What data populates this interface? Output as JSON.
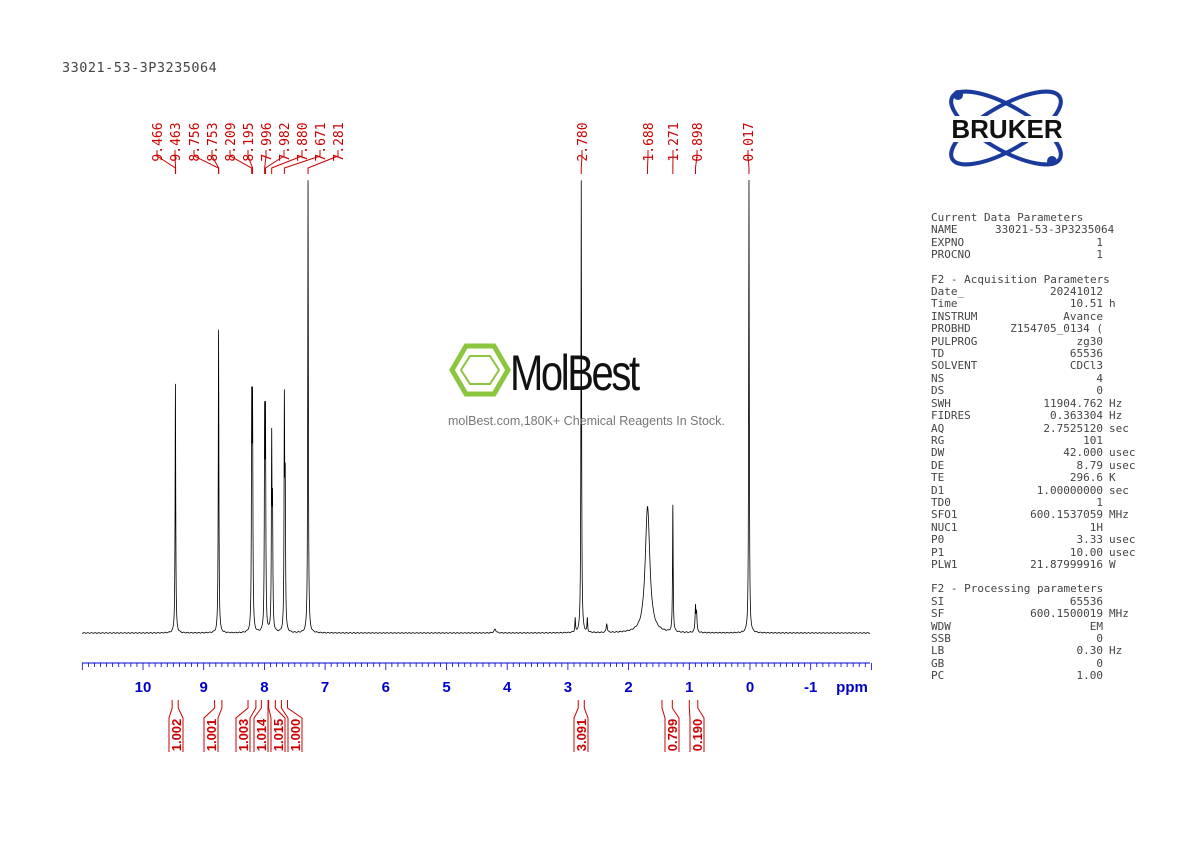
{
  "sample_name": "33021-53-3P3235064",
  "logo": {
    "text": "BRUKER"
  },
  "watermark": {
    "name": "MolBest",
    "tagline": "molBest.com,180K+ Chemical Reagents In Stock."
  },
  "parameters": [
    {
      "title": "Current Data Parameters",
      "rows": [
        [
          "NAME",
          "33021-53-3P3235064",
          ""
        ],
        [
          "EXPNO",
          "1",
          ""
        ],
        [
          "PROCNO",
          "1",
          ""
        ]
      ]
    },
    {
      "title": "F2 - Acquisition Parameters",
      "rows": [
        [
          "Date_",
          "20241012",
          ""
        ],
        [
          "Time",
          "10.51",
          "h"
        ],
        [
          "INSTRUM",
          "Avance",
          ""
        ],
        [
          "PROBHD",
          "Z154705_0134 (",
          ""
        ],
        [
          "PULPROG",
          "zg30",
          ""
        ],
        [
          "TD",
          "65536",
          ""
        ],
        [
          "SOLVENT",
          "CDCl3",
          ""
        ],
        [
          "NS",
          "4",
          ""
        ],
        [
          "DS",
          "0",
          ""
        ],
        [
          "SWH",
          "11904.762",
          "Hz"
        ],
        [
          "FIDRES",
          "0.363304",
          "Hz"
        ],
        [
          "AQ",
          "2.7525120",
          "sec"
        ],
        [
          "RG",
          "101",
          ""
        ],
        [
          "DW",
          "42.000",
          "usec"
        ],
        [
          "DE",
          "8.79",
          "usec"
        ],
        [
          "TE",
          "296.6",
          "K"
        ],
        [
          "D1",
          "1.00000000",
          "sec"
        ],
        [
          "TD0",
          "1",
          ""
        ],
        [
          "SFO1",
          "600.1537059",
          "MHz"
        ],
        [
          "NUC1",
          "1H",
          ""
        ],
        [
          "P0",
          "3.33",
          "usec"
        ],
        [
          "P1",
          "10.00",
          "usec"
        ],
        [
          "PLW1",
          "21.87999916",
          "W"
        ]
      ]
    },
    {
      "title": "F2 - Processing parameters",
      "rows": [
        [
          "SI",
          "65536",
          ""
        ],
        [
          "SF",
          "600.1500019",
          "MHz"
        ],
        [
          "WDW",
          "EM",
          ""
        ],
        [
          "SSB",
          "0",
          ""
        ],
        [
          "LB",
          "0.30",
          "Hz"
        ],
        [
          "GB",
          "0",
          ""
        ],
        [
          "PC",
          "1.00",
          ""
        ]
      ]
    }
  ],
  "chart_data": {
    "type": "line",
    "xlabel": "ppm",
    "xlim": [
      11,
      -2
    ],
    "x_reversed": true,
    "xticks": [
      10,
      9,
      8,
      7,
      6,
      5,
      4,
      3,
      2,
      1,
      0,
      -1
    ],
    "peak_labels": [
      "9.466",
      "9.463",
      "8.756",
      "8.753",
      "8.209",
      "8.195",
      "7.996",
      "7.982",
      "7.880",
      "7.671",
      "7.281",
      "2.780",
      "1.688",
      "1.271",
      "0.898",
      "0.017"
    ],
    "signals": [
      {
        "ppm": 9.466,
        "intensity": 0.55,
        "width": 0.006
      },
      {
        "ppm": 8.755,
        "intensity": 0.67,
        "width": 0.006
      },
      {
        "ppm": 8.209,
        "intensity": 0.47,
        "width": 0.006
      },
      {
        "ppm": 8.195,
        "intensity": 0.47,
        "width": 0.006
      },
      {
        "ppm": 7.996,
        "intensity": 0.44,
        "width": 0.006
      },
      {
        "ppm": 7.982,
        "intensity": 0.44,
        "width": 0.006
      },
      {
        "ppm": 7.88,
        "intensity": 0.41,
        "width": 0.006
      },
      {
        "ppm": 7.866,
        "intensity": 0.25,
        "width": 0.006
      },
      {
        "ppm": 7.671,
        "intensity": 0.49,
        "width": 0.006
      },
      {
        "ppm": 7.657,
        "intensity": 0.3,
        "width": 0.006
      },
      {
        "ppm": 7.281,
        "intensity": 1.0,
        "width": 0.006
      },
      {
        "ppm": 2.78,
        "intensity": 1.0,
        "width": 0.006
      },
      {
        "ppm": 2.88,
        "intensity": 0.03,
        "width": 0.006
      },
      {
        "ppm": 2.68,
        "intensity": 0.03,
        "width": 0.006
      },
      {
        "ppm": 2.36,
        "intensity": 0.02,
        "width": 0.01
      },
      {
        "ppm": 4.2,
        "intensity": 0.008,
        "width": 0.02
      },
      {
        "ppm": 1.688,
        "intensity": 0.28,
        "width": 0.045
      },
      {
        "ppm": 1.271,
        "intensity": 0.28,
        "width": 0.006
      },
      {
        "ppm": 0.898,
        "intensity": 0.057,
        "width": 0.008
      },
      {
        "ppm": 0.88,
        "intensity": 0.04,
        "width": 0.008
      },
      {
        "ppm": 0.017,
        "intensity": 1.0,
        "width": 0.006
      }
    ],
    "integrals": [
      {
        "from": 9.52,
        "to": 9.42,
        "value": "1.002"
      },
      {
        "from": 8.82,
        "to": 8.7,
        "value": "1.001"
      },
      {
        "from": 8.27,
        "to": 8.14,
        "value": "1.003"
      },
      {
        "from": 8.05,
        "to": 7.94,
        "value": "1.014"
      },
      {
        "from": 7.93,
        "to": 7.82,
        "value": "1.015"
      },
      {
        "from": 7.72,
        "to": 7.62,
        "value": "1.000"
      },
      {
        "from": 2.83,
        "to": 2.73,
        "value": "3.091"
      },
      {
        "from": 1.45,
        "to": 1.28,
        "value": "0.799"
      },
      {
        "from": 1.0,
        "to": 0.86,
        "value": "0.190"
      }
    ],
    "colors": {
      "spectrum": "#000000",
      "axis": "#0000cc",
      "annotation": "#cc0000"
    }
  }
}
